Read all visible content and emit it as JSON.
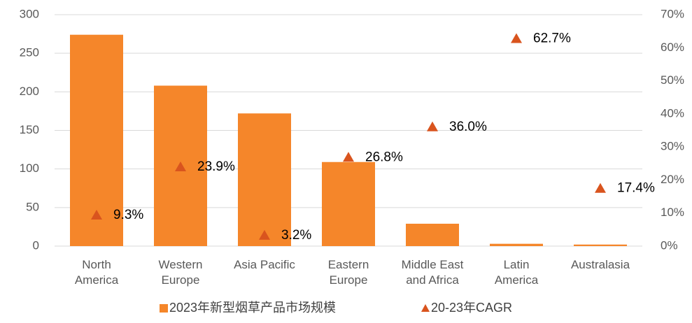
{
  "chart_data": {
    "type": "bar_line",
    "categories": [
      "North\nAmerica",
      "Western\nEurope",
      "Asia Pacific",
      "Eastern\nEurope",
      "Middle East\nand Africa",
      "Latin\nAmerica",
      "Australasia"
    ],
    "series": [
      {
        "name": "2023年新型烟草产品市场规模",
        "color": "#f5862a",
        "type": "bar",
        "values": [
          274,
          208,
          172,
          109,
          29,
          3,
          2
        ]
      },
      {
        "name": "20-23年CAGR",
        "color": "#d9541e",
        "type": "scatter",
        "axis": "y2",
        "marker": "triangle",
        "values": [
          9.3,
          23.9,
          3.2,
          26.8,
          36.0,
          62.7,
          17.4
        ],
        "value_labels": [
          "9.3%",
          "23.9%",
          "3.2%",
          "26.8%",
          "36.0%",
          "62.7%",
          "17.4%"
        ]
      }
    ],
    "ylim": [
      0,
      300
    ],
    "yticks": [
      0,
      50,
      100,
      150,
      200,
      250,
      300
    ],
    "y2lim": [
      0,
      70
    ],
    "y2ticks": [
      {
        "value": 0,
        "label": "0%"
      },
      {
        "value": 10,
        "label": "10%"
      },
      {
        "value": 20,
        "label": "20%"
      },
      {
        "value": 30,
        "label": "30%"
      },
      {
        "value": 40,
        "label": "40%"
      },
      {
        "value": 50,
        "label": "50%"
      },
      {
        "value": 60,
        "label": "60%"
      },
      {
        "value": 70,
        "label": "70%"
      }
    ],
    "grid": true,
    "legend": "bottom"
  }
}
